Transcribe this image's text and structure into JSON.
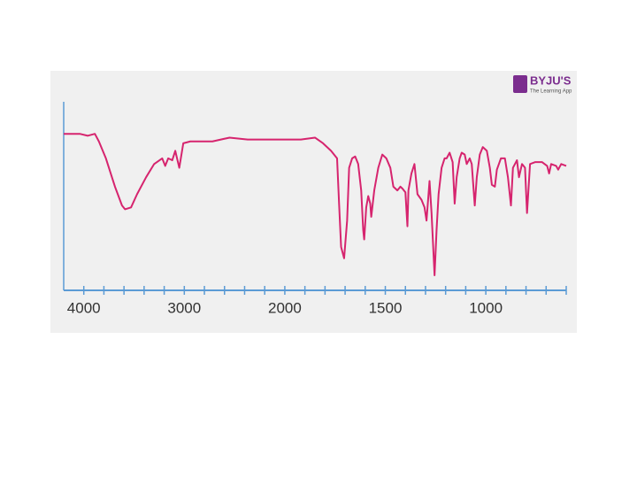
{
  "chart_data": {
    "type": "line",
    "brand": "BYJU'S",
    "brand_tagline": "The Learning App",
    "xlim": [
      4200,
      600
    ],
    "xscale": {
      "break": 2000,
      "factor": 2
    },
    "xticks": [
      4000,
      3000,
      2000,
      1500,
      1000
    ],
    "xminorticks": [
      4000,
      3800,
      3600,
      3400,
      3200,
      3000,
      2800,
      2600,
      2400,
      2200,
      2000,
      1900,
      1800,
      1700,
      1600,
      1500,
      1400,
      1300,
      1200,
      1100,
      1000,
      900,
      800,
      700,
      600
    ],
    "ylim": [
      0,
      100
    ],
    "x": [
      4200,
      4040,
      3960,
      3890,
      3850,
      3780,
      3690,
      3620,
      3590,
      3530,
      3470,
      3380,
      3300,
      3220,
      3190,
      3160,
      3120,
      3090,
      3050,
      3010,
      2940,
      2720,
      2550,
      2370,
      2190,
      2020,
      1920,
      1850,
      1810,
      1770,
      1740,
      1730,
      1720,
      1705,
      1690,
      1680,
      1665,
      1650,
      1635,
      1620,
      1610,
      1605,
      1595,
      1585,
      1575,
      1570,
      1555,
      1535,
      1515,
      1495,
      1475,
      1460,
      1440,
      1425,
      1415,
      1400,
      1390,
      1385,
      1370,
      1355,
      1340,
      1320,
      1305,
      1295,
      1280,
      1270,
      1255,
      1245,
      1235,
      1220,
      1205,
      1195,
      1180,
      1165,
      1155,
      1145,
      1130,
      1120,
      1105,
      1095,
      1080,
      1070,
      1055,
      1045,
      1030,
      1015,
      995,
      980,
      970,
      955,
      945,
      925,
      905,
      890,
      875,
      865,
      845,
      835,
      820,
      805,
      795,
      780,
      755,
      720,
      695,
      685,
      675,
      650,
      640,
      625,
      600
    ],
    "series": [
      {
        "color": "#d6246e",
        "values": [
          83,
          83,
          82,
          83,
          79,
          70,
          55,
          45,
          43,
          44,
          51,
          60,
          67,
          70,
          66,
          70,
          69,
          74,
          65,
          78,
          79,
          79,
          81,
          80,
          80,
          80,
          80,
          81,
          78,
          74,
          70,
          46,
          23,
          17,
          37,
          65,
          70,
          71,
          67,
          53,
          32,
          27,
          44,
          50,
          46,
          39,
          53,
          65,
          72,
          70,
          65,
          55,
          53,
          55,
          54,
          52,
          34,
          53,
          62,
          67,
          51,
          48,
          44,
          37,
          58,
          41,
          8,
          32,
          51,
          65,
          70,
          70,
          73,
          68,
          46,
          60,
          70,
          73,
          72,
          67,
          70,
          67,
          45,
          60,
          72,
          76,
          74,
          65,
          56,
          55,
          64,
          70,
          70,
          60,
          45,
          65,
          69,
          60,
          67,
          65,
          41,
          67,
          68,
          68,
          66,
          62,
          67,
          66,
          64,
          67,
          66
        ]
      }
    ]
  }
}
